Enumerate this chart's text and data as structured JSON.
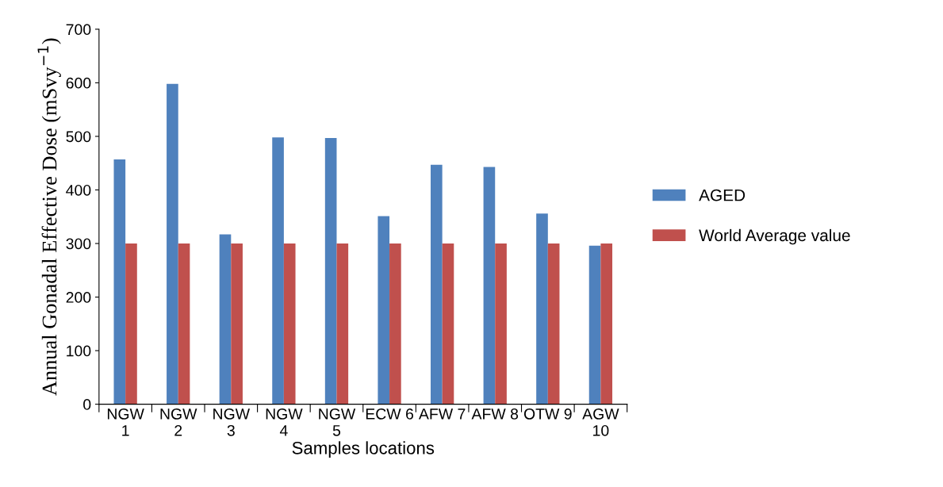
{
  "chart_data": {
    "type": "bar",
    "xlabel": "Samples locations",
    "ylabel": "Annual Gonadal Effective Dose (mSvy$^{−1}$)",
    "categories": [
      "NGW\n1",
      "NGW\n2",
      "NGW\n3",
      "NGW\n4",
      "NGW\n5",
      "ECW 6",
      "AFW 7",
      "AFW 8",
      "OTW 9",
      "AGW\n10"
    ],
    "series": [
      {
        "name": "AGED",
        "color": "#4f81bd",
        "values": [
          457,
          598,
          317,
          498,
          497,
          351,
          447,
          443,
          356,
          296
        ]
      },
      {
        "name": "World Average value",
        "color": "#c0504d",
        "values": [
          300,
          300,
          300,
          300,
          300,
          300,
          300,
          300,
          300,
          300
        ]
      }
    ],
    "ylim": [
      0,
      700
    ],
    "yticks": [
      0,
      100,
      200,
      300,
      400,
      500,
      600,
      700
    ],
    "grid": false,
    "legend": "right"
  }
}
